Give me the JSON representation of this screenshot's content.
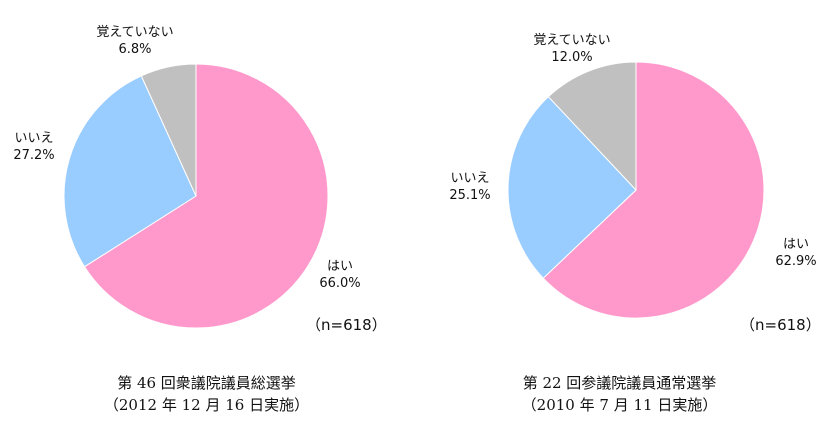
{
  "chart_data": [
    {
      "type": "pie",
      "title": "第 46 回衆議院議員総選挙",
      "subtitle": "（2012 年 12 月 16 日実施）",
      "sample_size": "（n=618）",
      "slices": [
        {
          "label": "はい",
          "value": 66.0,
          "value_label": "66.0%",
          "color": "#ff99cc"
        },
        {
          "label": "いいえ",
          "value": 27.2,
          "value_label": "27.2%",
          "color": "#99ccff"
        },
        {
          "label": "覚えていない",
          "value": 6.8,
          "value_label": "6.8%",
          "color": "#c0c0c0"
        }
      ]
    },
    {
      "type": "pie",
      "title": "第 22 回参議院議員通常選挙",
      "subtitle": "（2010 年 7 月 11 日実施）",
      "sample_size": "（n=618）",
      "slices": [
        {
          "label": "はい",
          "value": 62.9,
          "value_label": "62.9%",
          "color": "#ff99cc"
        },
        {
          "label": "いいえ",
          "value": 25.1,
          "value_label": "25.1%",
          "color": "#99ccff"
        },
        {
          "label": "覚えていない",
          "value": 12.0,
          "value_label": "12.0%",
          "color": "#c0c0c0"
        }
      ]
    }
  ]
}
